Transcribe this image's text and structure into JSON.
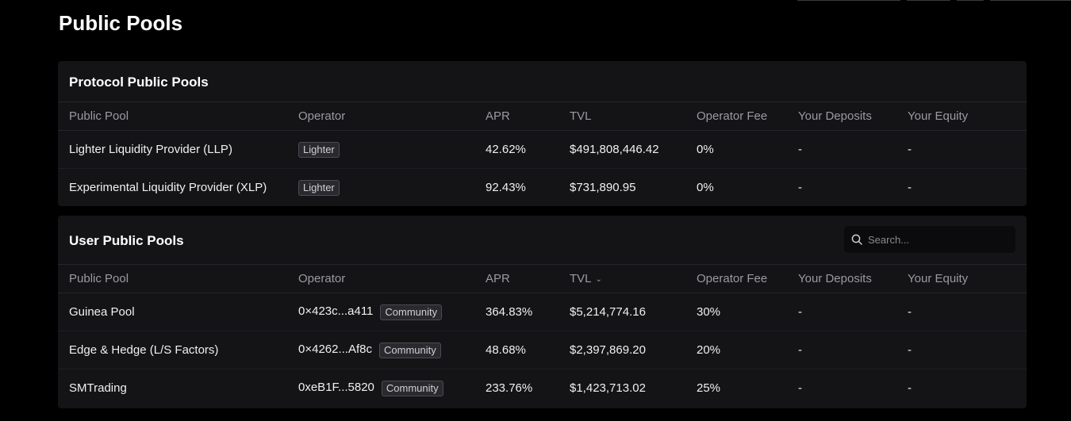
{
  "page": {
    "title": "Public Pools"
  },
  "protocol": {
    "title": "Protocol Public Pools",
    "columns": [
      "Public Pool",
      "Operator",
      "APR",
      "TVL",
      "Operator Fee",
      "Your Deposits",
      "Your Equity"
    ],
    "rows": [
      {
        "name": "Lighter Liquidity Provider (LLP)",
        "operator_badge": "Lighter",
        "apr": "42.62%",
        "tvl": "$491,808,446.42",
        "fee": "0%",
        "deposits": "-",
        "equity": "-"
      },
      {
        "name": "Experimental Liquidity Provider (XLP)",
        "operator_badge": "Lighter",
        "apr": "92.43%",
        "tvl": "$731,890.95",
        "fee": "0%",
        "deposits": "-",
        "equity": "-"
      }
    ]
  },
  "user": {
    "title": "User Public Pools",
    "search_placeholder": "Search...",
    "columns": [
      "Public Pool",
      "Operator",
      "APR",
      "TVL",
      "Operator Fee",
      "Your Deposits",
      "Your Equity"
    ],
    "sort_column": "TVL",
    "rows": [
      {
        "name": "Guinea Pool",
        "operator_addr": "0×423c...a411",
        "operator_badge": "Community",
        "apr": "364.83%",
        "tvl": "$5,214,774.16",
        "fee": "30%",
        "deposits": "-",
        "equity": "-"
      },
      {
        "name": "Edge & Hedge (L/S Factors)",
        "operator_addr": "0×4262...Af8c",
        "operator_badge": "Community",
        "apr": "48.68%",
        "tvl": "$2,397,869.20",
        "fee": "20%",
        "deposits": "-",
        "equity": "-"
      },
      {
        "name": "SMTrading",
        "operator_addr": "0xeB1F...5820",
        "operator_badge": "Community",
        "apr": "233.76%",
        "tvl": "$1,423,713.02",
        "fee": "25%",
        "deposits": "-",
        "equity": "-"
      }
    ]
  },
  "colors": {
    "background": "#000000",
    "card": "#141417",
    "muted_text": "#9a9aa0",
    "badge_bg": "#2a2a2e"
  }
}
